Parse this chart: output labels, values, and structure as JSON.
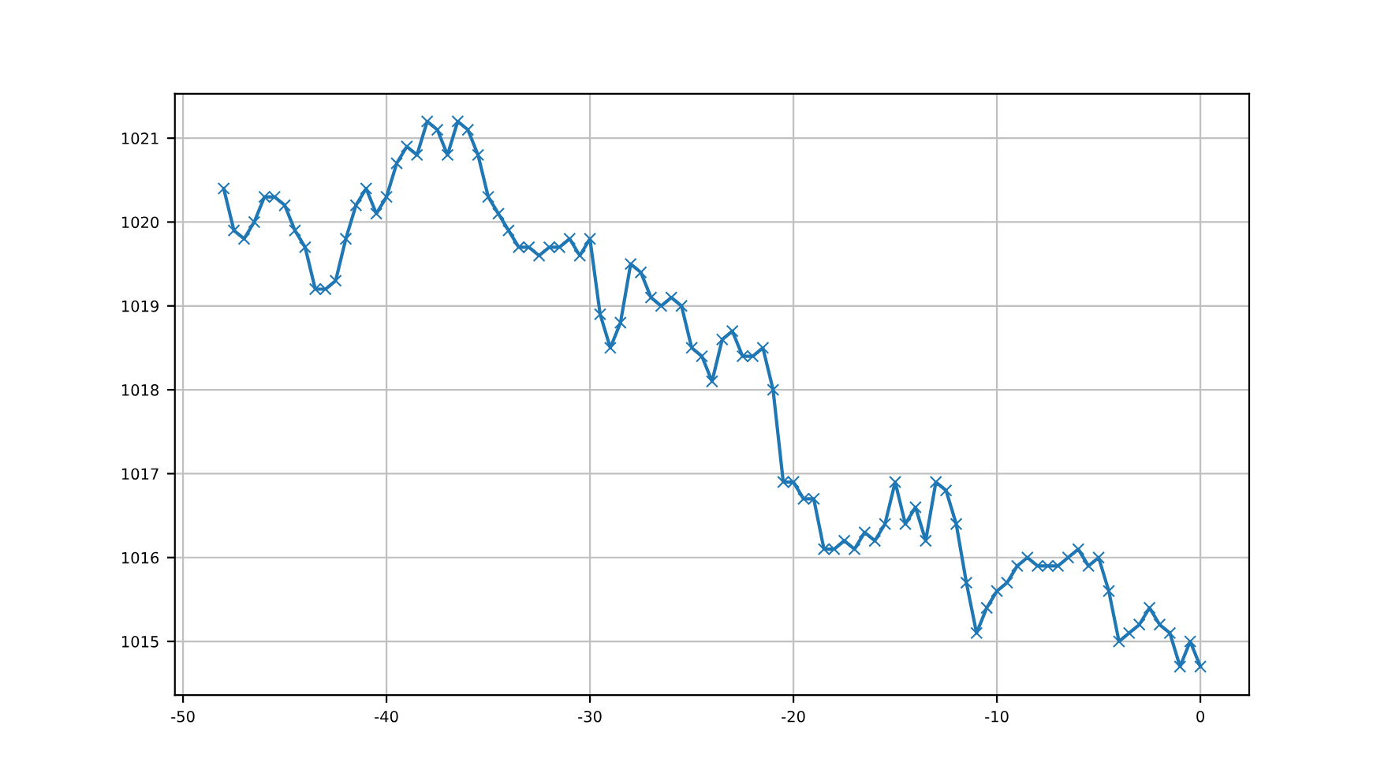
{
  "chart_data": {
    "type": "line",
    "marker": "cross",
    "grid": true,
    "x": [
      -48,
      -47.5,
      -47,
      -46.5,
      -46,
      -45.5,
      -45,
      -44.5,
      -44,
      -43.5,
      -43,
      -42.5,
      -42,
      -41.5,
      -41,
      -40.5,
      -40,
      -39.5,
      -39,
      -38.5,
      -38,
      -37.5,
      -37,
      -36.5,
      -36,
      -35.5,
      -35,
      -34.5,
      -34,
      -33.5,
      -33,
      -32.5,
      -32,
      -31.5,
      -31,
      -30.5,
      -30,
      -29.5,
      -29,
      -28.5,
      -28,
      -27.5,
      -27,
      -26.5,
      -26,
      -25.5,
      -25,
      -24.5,
      -24,
      -23.5,
      -23,
      -22.5,
      -22,
      -21.5,
      -21,
      -20.5,
      -20,
      -19.5,
      -19,
      -18.5,
      -18,
      -17.5,
      -17,
      -16.5,
      -16,
      -15.5,
      -15,
      -14.5,
      -14,
      -13.5,
      -13,
      -12.5,
      -12,
      -11.5,
      -11,
      -10.5,
      -10,
      -9.5,
      -9,
      -8.5,
      -8,
      -7.5,
      -7,
      -6.5,
      -6,
      -5.5,
      -5,
      -4.5,
      -4,
      -3.5,
      -3,
      -2.5,
      -2,
      -1.5,
      -1,
      -0.5,
      0
    ],
    "series": [
      {
        "color": "#1f77b4",
        "values": [
          1020.4,
          1019.9,
          1019.8,
          1020.0,
          1020.3,
          1020.3,
          1020.2,
          1019.9,
          1019.7,
          1019.2,
          1019.2,
          1019.3,
          1019.8,
          1020.2,
          1020.4,
          1020.1,
          1020.3,
          1020.7,
          1020.9,
          1020.8,
          1021.2,
          1021.1,
          1020.8,
          1021.2,
          1021.1,
          1020.8,
          1020.3,
          1020.1,
          1019.9,
          1019.7,
          1019.7,
          1019.6,
          1019.7,
          1019.7,
          1019.8,
          1019.6,
          1019.8,
          1018.9,
          1018.5,
          1018.8,
          1019.5,
          1019.4,
          1019.1,
          1019.0,
          1019.1,
          1019.0,
          1018.5,
          1018.4,
          1018.1,
          1018.6,
          1018.7,
          1018.4,
          1018.4,
          1018.5,
          1018.0,
          1016.9,
          1016.9,
          1016.7,
          1016.7,
          1016.1,
          1016.1,
          1016.2,
          1016.1,
          1016.3,
          1016.2,
          1016.4,
          1016.9,
          1016.4,
          1016.6,
          1016.2,
          1016.9,
          1016.8,
          1016.4,
          1015.7,
          1015.1,
          1015.4,
          1015.6,
          1015.7,
          1015.9,
          1016.0,
          1015.9,
          1015.9,
          1015.9,
          1016.0,
          1016.1,
          1015.9,
          1016.0,
          1015.6,
          1015.0,
          1015.1,
          1015.2,
          1015.4,
          1015.2,
          1015.1,
          1014.7,
          1015.0,
          1014.7
        ]
      }
    ],
    "xlim": [
      -50.4,
      2.4
    ],
    "xticks": [
      -50,
      -40,
      -30,
      -20,
      -10,
      0
    ],
    "ylim": [
      1014.36,
      1021.53
    ],
    "yticks": [
      1015,
      1016,
      1017,
      1018,
      1019,
      1020,
      1021
    ]
  }
}
